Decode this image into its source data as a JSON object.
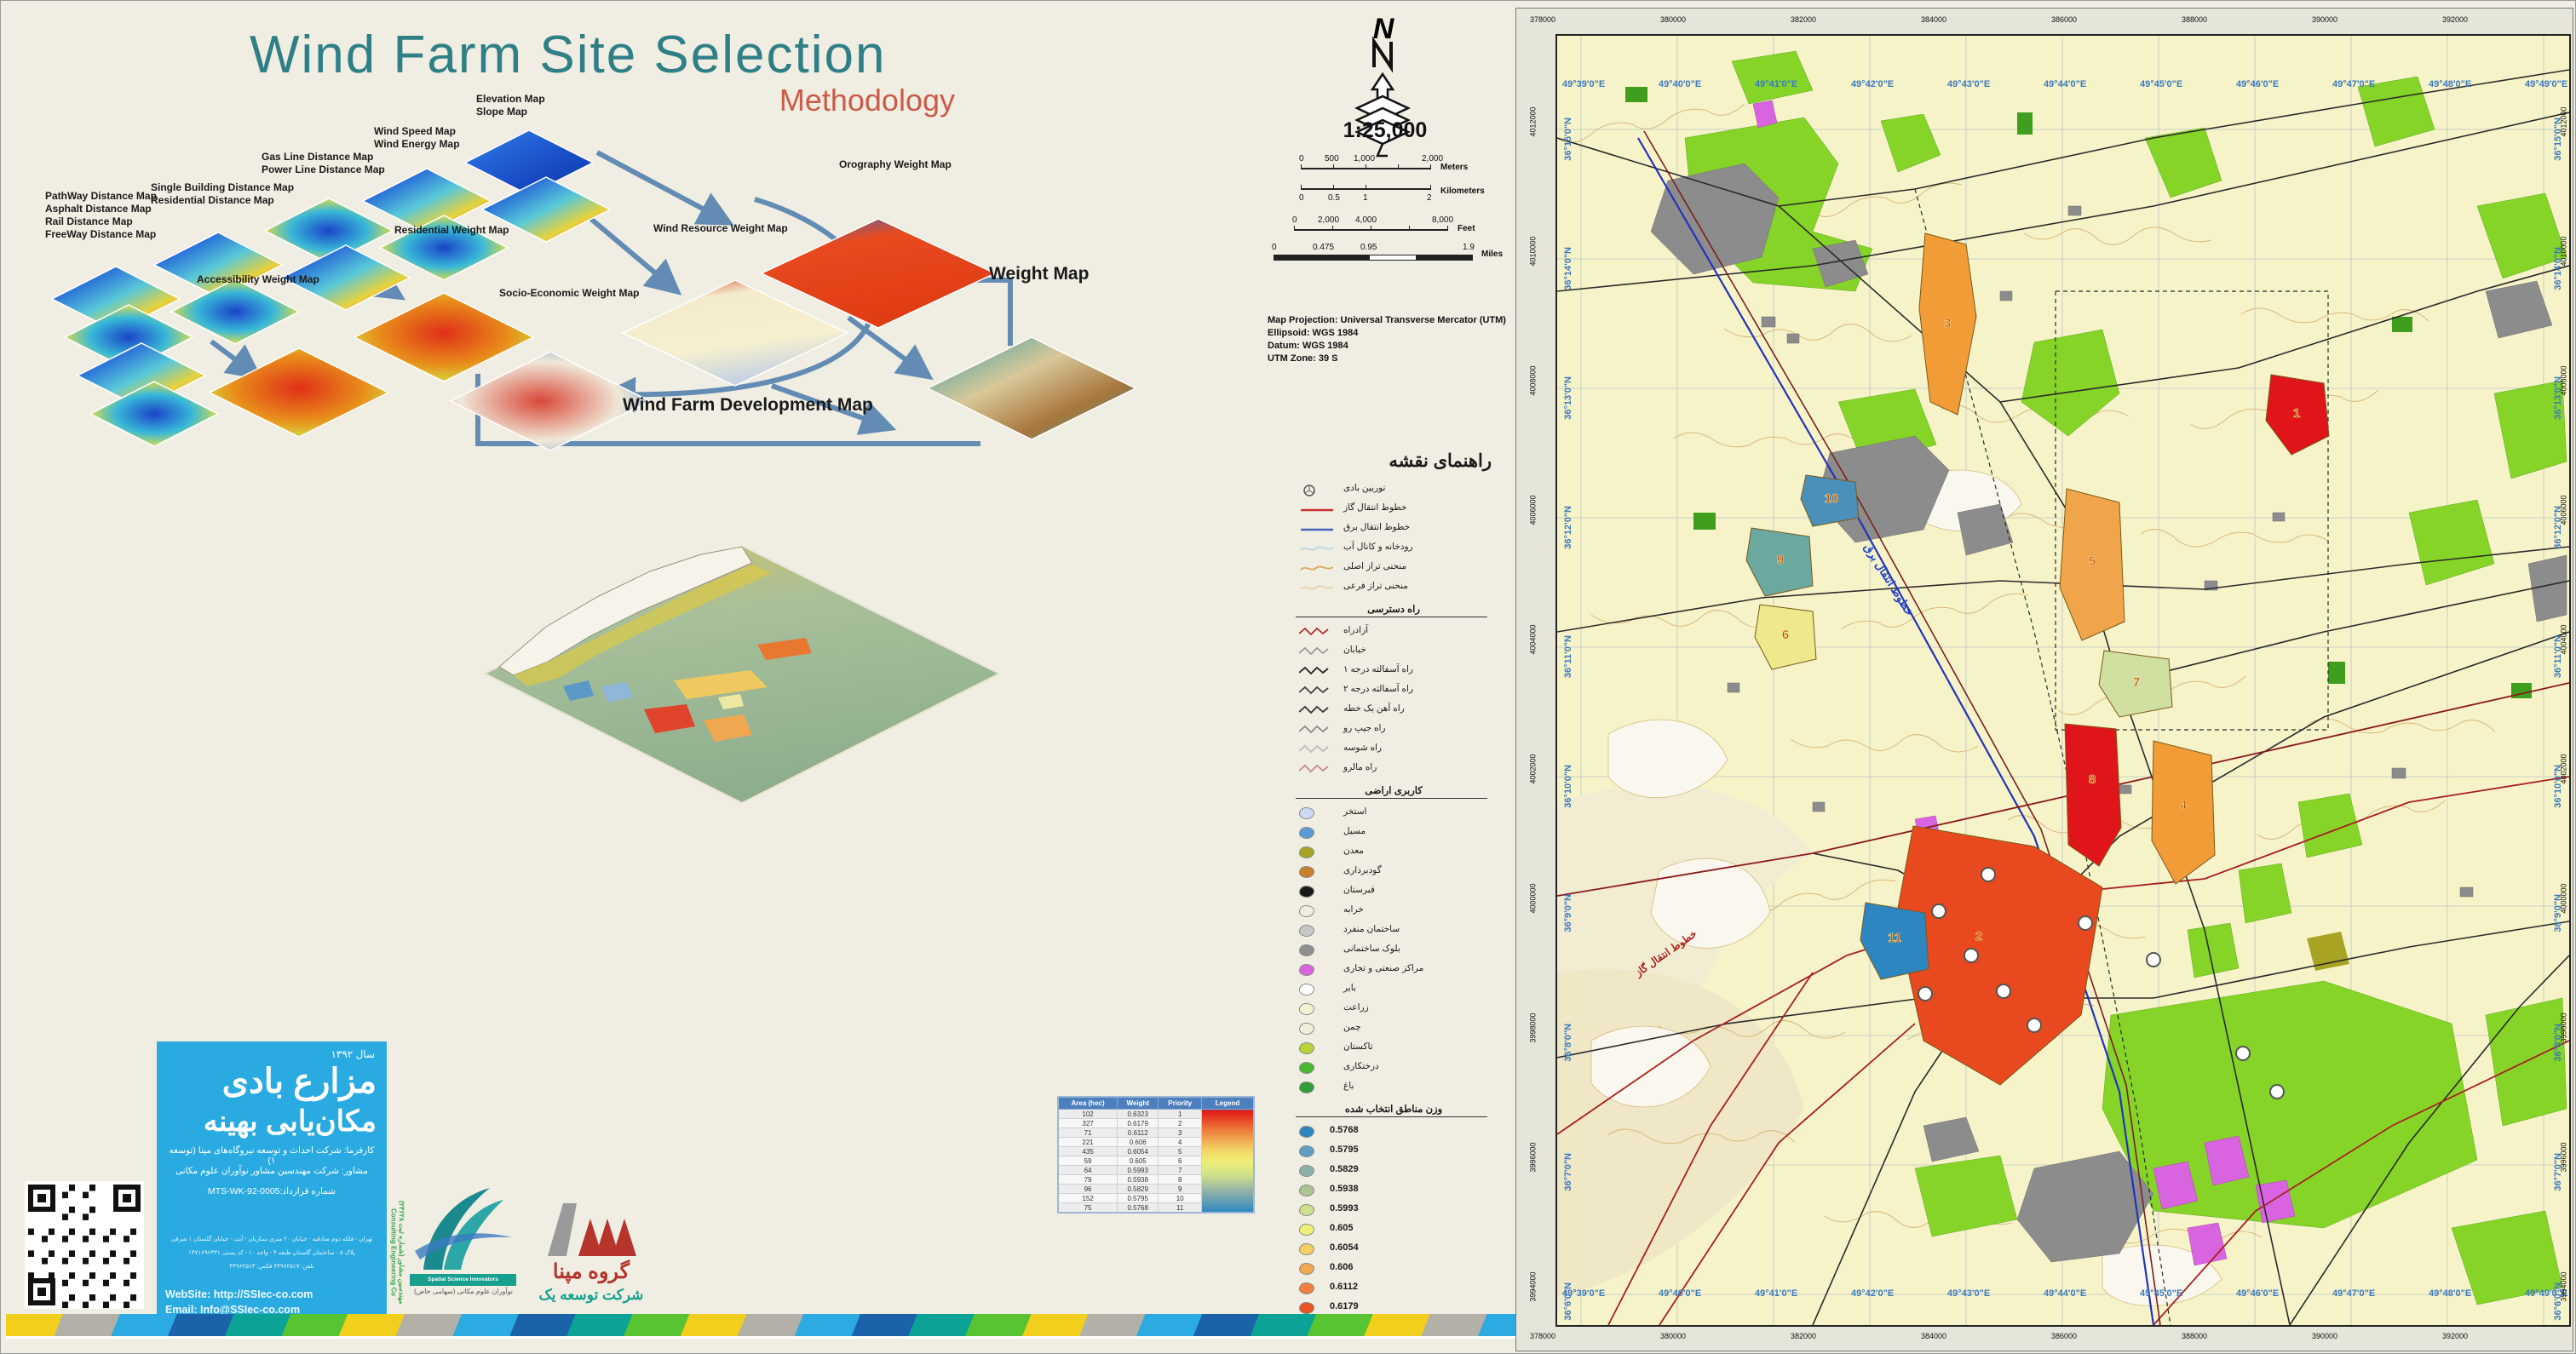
{
  "title": {
    "main": "Wind Farm Site Selection",
    "sub": "Methodology"
  },
  "flowchart": {
    "labels": {
      "elevation": "Elevation Map\nSlope Map",
      "wind_speed": "Wind Speed Map\nWind Energy Map",
      "gas_line": "Gas Line Distance Map\nPower Line Distance Map",
      "single_building": "Single Building Distance Map\nResidential Distance Map",
      "pathway": "PathWay Distance Map\nAsphalt Distance Map\nRail Distance Map\nFreeWay Distance Map",
      "residential_weight": "Residential Weight Map",
      "accessibility_weight": "Accessibility Weight Map",
      "socio_economic_weight": "Socio-Economic Weight Map",
      "wind_resource_weight": "Wind Resource Weight Map",
      "orography_weight": "Orography Weight Map",
      "weight_map": "Weight Map",
      "development_map": "Wind Farm Development Map"
    },
    "arrow_color": "#5c87b2"
  },
  "map_info": {
    "north_label": "N",
    "scale": "1:25,000",
    "bars": {
      "meters": {
        "ticks": [
          "0",
          "500",
          "1,000",
          "2,000"
        ],
        "unit": "Meters"
      },
      "kilometers": {
        "ticks": [
          "0",
          "0.5",
          "1",
          "2"
        ],
        "unit": "Kilometers"
      },
      "feet": {
        "ticks": [
          "0",
          "2,000",
          "4,000",
          "8,000"
        ],
        "unit": "Feet"
      },
      "miles": {
        "ticks": [
          "0",
          "0.475",
          "0.95",
          "1.9"
        ],
        "unit": "Miles"
      }
    },
    "projection": [
      "Map Projection: Universal Transverse Mercator (UTM)",
      "Ellipsoid: WGS 1984",
      "Datum: WGS 1984",
      "UTM Zone: 39 S"
    ]
  },
  "legend": {
    "title": "راهنمای نقشه",
    "line_items": [
      {
        "label": "توربین بادی",
        "type": "turbine",
        "color": "#555555"
      },
      {
        "label": "خطوط انتقال گاز",
        "type": "line",
        "color": "#cc3333"
      },
      {
        "label": "خطوط انتقال برق",
        "type": "line",
        "color": "#4466bb"
      },
      {
        "label": "رودخانه و کانال آب",
        "type": "wavy",
        "color": "#bcd6e8"
      },
      {
        "label": "منحنی تراز اصلی",
        "type": "wavy",
        "color": "#d9a95c"
      },
      {
        "label": "منحنی تراز فرعی",
        "type": "wavy",
        "color": "#e7d3ae"
      }
    ],
    "roads_header": "راه دسترسی",
    "road_items": [
      {
        "label": "آزادراه",
        "color": "#b03030"
      },
      {
        "label": "خیابان",
        "color": "#9a9a9a"
      },
      {
        "label": "راه آسفالته درجه ۱",
        "color": "#222222"
      },
      {
        "label": "راه آسفالته درجه ۲",
        "color": "#444444"
      },
      {
        "label": "راه آهن یک خطه",
        "color": "#333333"
      },
      {
        "label": "راه جیپ رو",
        "color": "#8a8a8a"
      },
      {
        "label": "راه شوسه",
        "color": "#bbbbbb"
      },
      {
        "label": "راه مالرو",
        "color": "#cc8888"
      }
    ],
    "landuse_header": "کاربری اراضی",
    "landuse_items": [
      {
        "label": "استخر",
        "color": "#ccd9f0"
      },
      {
        "label": "مسیل",
        "color": "#5b9bd5"
      },
      {
        "label": "معدن",
        "color": "#a8a423"
      },
      {
        "label": "گودبرداری",
        "color": "#c87f2a"
      },
      {
        "label": "قبرستان",
        "color": "#1a1a1a"
      },
      {
        "label": "خرابه",
        "color": "#efece0"
      },
      {
        "label": "ساختمان منفرد",
        "color": "#c6c6c6"
      },
      {
        "label": "بلوک ساختمانی",
        "color": "#8f8f8f"
      },
      {
        "label": "مراکز صنعتی و تجاری",
        "color": "#d964e0"
      },
      {
        "label": "بایر",
        "color": "#ffffff"
      },
      {
        "label": "زراعت",
        "color": "#f6f2cf"
      },
      {
        "label": "چمن",
        "color": "#eef0da"
      },
      {
        "label": "تاکستان",
        "color": "#b8d435"
      },
      {
        "label": "درختکاری",
        "color": "#49b82e"
      },
      {
        "label": "باغ",
        "color": "#2f9e38"
      }
    ],
    "weights_header": "وزن مناطق انتخاب شده",
    "weight_items": [
      {
        "value": "0.5768",
        "color": "#2e86c1"
      },
      {
        "value": "0.5795",
        "color": "#5f9ec0"
      },
      {
        "value": "0.5829",
        "color": "#8fb0a8"
      },
      {
        "value": "0.5938",
        "color": "#abc493"
      },
      {
        "value": "0.5993",
        "color": "#cfe08b"
      },
      {
        "value": "0.605",
        "color": "#efef77"
      },
      {
        "value": "0.6054",
        "color": "#f3cf62"
      },
      {
        "value": "0.606",
        "color": "#f2a851"
      },
      {
        "value": "0.6112",
        "color": "#ee7f3d"
      },
      {
        "value": "0.6179",
        "color": "#e85422"
      },
      {
        "value": "0.6323",
        "color": "#e21515"
      }
    ]
  },
  "table": {
    "headers": [
      "Area (hec)",
      "Weight",
      "Priority",
      "Legend"
    ],
    "rows": [
      [
        "102",
        "0.6323",
        "1"
      ],
      [
        "327",
        "0.6179",
        "2"
      ],
      [
        "71",
        "0.6112",
        "3"
      ],
      [
        "221",
        "0.606",
        "4"
      ],
      [
        "435",
        "0.6054",
        "5"
      ],
      [
        "59",
        "0.605",
        "6"
      ],
      [
        "64",
        "0.5993",
        "7"
      ],
      [
        "79",
        "0.5938",
        "8"
      ],
      [
        "96",
        "0.5829",
        "9"
      ],
      [
        "152",
        "0.5795",
        "10"
      ],
      [
        "75",
        "0.5768",
        "11"
      ]
    ]
  },
  "panel": {
    "year": "سال ۱۳۹۲",
    "title1": "مزارع بادی",
    "title2": "مکان‌یابی بهینه",
    "client": "کارفرما: شرکت احداث و توسعه نیروگاه‌های مپنا (توسعه ۱)",
    "consultant": "مشاور: شرکت مهندسین مشاور نوآوران علوم مکانی",
    "contract": "شماره قرارداد:MTS-WK-92-0005",
    "address1": "تهران - فلکه دوم صادقیه - خیابان ۲۰ متری ستاریان - آیت - خیابان گلستان ۱ شرقی",
    "address2": "پلاک ۵ - ساختمان گلستان طبقه ۴ - واحد ۱۰ - کد پستی ۱۴۷۱۶۹۶۳۳۱",
    "address3": "تلفن: ۴۴۹۶۲۵۱۷ فکس: ۴۴۹۶۲۵۱۳",
    "website": "WebSite: http://SSIec-co.com",
    "email": "Email: Info@SSIec-co.com"
  },
  "logos": {
    "ssi_en": "Spatial Science Innovators",
    "ssi_fa": "نوآوران علوم مکانی (سهامی خاص)",
    "mapna_fa": "گروه مپنا",
    "mapna_sub": "شرکت توسعه یک",
    "consulting_fa": "مهندسین مشاور (شماره ثبت ۲۳۶۲۸)",
    "consulting_en": "Consulting Engineering Co"
  },
  "map": {
    "top_coords": [
      "378000",
      "380000",
      "382000",
      "384000",
      "386000",
      "388000",
      "390000",
      "392000"
    ],
    "left_coords": [
      "4012000",
      "4010000",
      "4008000",
      "4006000",
      "4004000",
      "4002000",
      "4000000",
      "3998000",
      "3996000",
      "3994000"
    ],
    "lon_labels": [
      "49°39'0\"E",
      "49°40'0\"E",
      "49°41'0\"E",
      "49°42'0\"E",
      "49°43'0\"E",
      "49°44'0\"E",
      "49°45'0\"E",
      "49°46'0\"E",
      "49°47'0\"E",
      "49°48'0\"E",
      "49°49'0\"E"
    ],
    "lat_labels": [
      "36°15'0\"N",
      "36°14'0\"N",
      "36°13'0\"N",
      "36°12'0\"N",
      "36°11'0\"N",
      "36°10'0\"N",
      "36°9'0\"N",
      "36°8'0\"N",
      "36°7'0\"N",
      "36°6'0\"N"
    ],
    "sites": [
      "1",
      "2",
      "3",
      "4",
      "5",
      "6",
      "7",
      "8",
      "9",
      "10",
      "11"
    ],
    "inline_labels": {
      "power": "خطوط انتقال برق",
      "gas": "خطوط انتقال گاز"
    }
  }
}
